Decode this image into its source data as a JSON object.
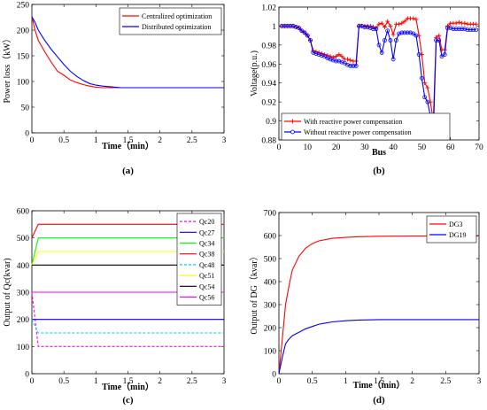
{
  "chart_data": [
    {
      "type": "line",
      "panel_label": "(a)",
      "xlabel": "Time（min）",
      "ylabel": "Power loss（kW）",
      "xlim": [
        0,
        3
      ],
      "ylim": [
        0,
        250
      ],
      "xticks": [
        "0",
        "0.5",
        "1",
        "1.5",
        "2",
        "2.5",
        "3"
      ],
      "yticks": [
        "0",
        "50",
        "100",
        "150",
        "200",
        "250"
      ],
      "legend_position": "top-right",
      "grid": false,
      "series": [
        {
          "name": "Centralized optimization",
          "color": "#ff0000",
          "x": [
            0,
            0.05,
            0.1,
            0.2,
            0.3,
            0.4,
            0.5,
            0.6,
            0.7,
            0.8,
            0.9,
            1.0,
            1.1,
            1.2,
            1.3,
            1.4,
            1.5,
            2.0,
            2.5,
            3.0
          ],
          "y": [
            226,
            200,
            180,
            158,
            138,
            120,
            112,
            103,
            98,
            94,
            91,
            89,
            88,
            88,
            88,
            88,
            88,
            88,
            88,
            88
          ]
        },
        {
          "name": "Distributed optimization",
          "color": "#0000ff",
          "x": [
            0,
            0.05,
            0.1,
            0.2,
            0.3,
            0.4,
            0.5,
            0.6,
            0.7,
            0.8,
            0.9,
            1.0,
            1.1,
            1.2,
            1.3,
            1.4,
            1.5,
            2.0,
            2.5,
            3.0
          ],
          "y": [
            226,
            215,
            200,
            180,
            163,
            148,
            133,
            120,
            110,
            102,
            96,
            93,
            91,
            90,
            89,
            88,
            88,
            88,
            88,
            88
          ]
        }
      ]
    },
    {
      "type": "line",
      "panel_label": "(b)",
      "xlabel": "Bus",
      "ylabel": "Voltage(p.u.)",
      "xlim": [
        0,
        70
      ],
      "ylim": [
        0.88,
        1.02
      ],
      "xticks": [
        "0",
        "10",
        "20",
        "30",
        "40",
        "50",
        "60",
        "70"
      ],
      "yticks": [
        "0.88",
        "0.9",
        "0.92",
        "0.94",
        "0.96",
        "0.98",
        "1",
        "1.02"
      ],
      "legend_position": "bottom-center",
      "grid": false,
      "series": [
        {
          "name": "With reactive power compensation",
          "color": "#ff0000",
          "marker": "plus",
          "x": [
            1,
            2,
            3,
            4,
            5,
            6,
            7,
            8,
            9,
            10,
            11,
            12,
            13,
            14,
            15,
            16,
            17,
            18,
            19,
            20,
            21,
            22,
            23,
            24,
            25,
            26,
            27,
            28,
            29,
            30,
            31,
            32,
            33,
            34,
            35,
            36,
            37,
            38,
            39,
            40,
            41,
            42,
            43,
            44,
            45,
            46,
            47,
            48,
            49,
            50,
            51,
            52,
            53,
            54,
            55,
            56,
            57,
            58,
            59,
            60,
            61,
            62,
            63,
            64,
            65,
            66,
            67,
            68,
            69
          ],
          "y": [
            1.0,
            1.0,
            1.0,
            1.0,
            1.0,
            0.999,
            0.998,
            0.995,
            0.993,
            0.99,
            0.985,
            0.974,
            0.973,
            0.972,
            0.971,
            0.97,
            0.969,
            0.968,
            0.967,
            0.968,
            0.97,
            0.968,
            0.965,
            0.965,
            0.964,
            0.963,
            0.963,
            1.0,
            1.0,
            1.0,
            1.0,
            1.0,
            0.999,
            0.998,
            1.002,
            1.003,
            0.999,
            1.005,
            1.0,
            0.991,
            1.002,
            1.002,
            1.003,
            1.005,
            1.008,
            1.008,
            1.008,
            1.007,
            0.99,
            0.97,
            0.94,
            0.935,
            0.92,
            0.9,
            0.988,
            0.99,
            0.975,
            0.975,
            1.0,
            1.003,
            1.003,
            1.003,
            1.004,
            1.003,
            1.003,
            1.002,
            1.002,
            1.002,
            1.002
          ]
        },
        {
          "name": "Without reactive power compensation",
          "color": "#0000ff",
          "marker": "circle",
          "x": [
            1,
            2,
            3,
            4,
            5,
            6,
            7,
            8,
            9,
            10,
            11,
            12,
            13,
            14,
            15,
            16,
            17,
            18,
            19,
            20,
            21,
            22,
            23,
            24,
            25,
            26,
            27,
            28,
            29,
            30,
            31,
            32,
            33,
            34,
            35,
            36,
            37,
            38,
            39,
            40,
            41,
            42,
            43,
            44,
            45,
            46,
            47,
            48,
            49,
            50,
            51,
            52,
            53,
            54,
            55,
            56,
            57,
            58,
            59,
            60,
            61,
            62,
            63,
            64,
            65,
            66,
            67,
            68,
            69
          ],
          "y": [
            1.0,
            1.0,
            1.0,
            1.0,
            1.0,
            0.999,
            0.998,
            0.995,
            0.993,
            0.99,
            0.985,
            0.972,
            0.971,
            0.97,
            0.969,
            0.968,
            0.966,
            0.965,
            0.964,
            0.963,
            0.963,
            0.962,
            0.961,
            0.959,
            0.958,
            0.958,
            0.958,
            1.0,
            1.0,
            0.999,
            0.999,
            0.998,
            0.997,
            0.997,
            0.98,
            0.972,
            0.985,
            0.995,
            0.985,
            0.965,
            0.985,
            0.992,
            0.993,
            0.993,
            0.993,
            0.993,
            0.992,
            0.99,
            0.97,
            0.945,
            0.925,
            0.92,
            0.905,
            0.884,
            0.985,
            0.985,
            0.968,
            0.97,
            0.998,
            0.998,
            0.997,
            0.997,
            0.997,
            0.997,
            0.997,
            0.996,
            0.996,
            0.996,
            0.996
          ]
        }
      ]
    },
    {
      "type": "line",
      "panel_label": "(c)",
      "xlabel": "Time（min）",
      "ylabel": "Output of Qc(kvar)",
      "xlim": [
        0,
        3
      ],
      "ylim": [
        0,
        600
      ],
      "xticks": [
        "0",
        "0.5",
        "1",
        "1.5",
        "2",
        "2.5",
        "3"
      ],
      "yticks": [
        "0",
        "100",
        "200",
        "300",
        "400",
        "500",
        "600"
      ],
      "legend_position": "right",
      "grid": false,
      "series": [
        {
          "name": "Qc20",
          "color": "#ff00ff",
          "dash": true,
          "x": [
            0,
            0.1,
            3
          ],
          "y": [
            300,
            100,
            100
          ]
        },
        {
          "name": "Qc27",
          "color": "#0000ff",
          "dash": false,
          "x": [
            0,
            0.05,
            3
          ],
          "y": [
            200,
            200,
            200
          ]
        },
        {
          "name": "Qc34",
          "color": "#00ff00",
          "dash": false,
          "x": [
            0,
            0.1,
            3
          ],
          "y": [
            400,
            500,
            500
          ]
        },
        {
          "name": "Qc38",
          "color": "#ff0000",
          "dash": false,
          "x": [
            0,
            0.1,
            3
          ],
          "y": [
            500,
            550,
            550
          ]
        },
        {
          "name": "Qc48",
          "color": "#00d0e8",
          "dash": true,
          "x": [
            0,
            0.1,
            3
          ],
          "y": [
            200,
            150,
            150
          ]
        },
        {
          "name": "Qc51",
          "color": "#ffff00",
          "dash": false,
          "x": [
            0,
            0.1,
            3
          ],
          "y": [
            400,
            450,
            450
          ]
        },
        {
          "name": "Qc54",
          "color": "#000000",
          "dash": false,
          "x": [
            0,
            0.05,
            3
          ],
          "y": [
            400,
            400,
            400
          ]
        },
        {
          "name": "Qc56",
          "color": "#ff00ff",
          "dash": false,
          "x": [
            0,
            0.05,
            3
          ],
          "y": [
            300,
            300,
            300
          ]
        }
      ]
    },
    {
      "type": "line",
      "panel_label": "(d)",
      "xlabel": "Time（min）",
      "ylabel": "Output of DG（kvar）",
      "xlim": [
        0,
        3
      ],
      "ylim": [
        0,
        700
      ],
      "xticks": [
        "0",
        "0.5",
        "1",
        "1.5",
        "2",
        "2.5",
        "3"
      ],
      "yticks": [
        "0",
        "100",
        "200",
        "300",
        "400",
        "500",
        "600",
        "700"
      ],
      "legend_position": "top-right",
      "grid": false,
      "series": [
        {
          "name": "DG3",
          "color": "#ff0000",
          "x": [
            0,
            0.05,
            0.1,
            0.15,
            0.2,
            0.3,
            0.4,
            0.5,
            0.6,
            0.8,
            1.0,
            1.2,
            1.5,
            2.0,
            2.5,
            3.0
          ],
          "y": [
            0,
            150,
            300,
            380,
            450,
            510,
            545,
            565,
            577,
            588,
            592,
            595,
            597,
            598,
            598,
            598
          ]
        },
        {
          "name": "DG19",
          "color": "#0000ff",
          "x": [
            0,
            0.05,
            0.1,
            0.15,
            0.2,
            0.3,
            0.4,
            0.5,
            0.6,
            0.7,
            0.8,
            1.0,
            1.2,
            1.5,
            2.0,
            2.5,
            3.0
          ],
          "y": [
            0,
            70,
            130,
            150,
            165,
            180,
            195,
            205,
            215,
            220,
            225,
            230,
            233,
            235,
            235,
            235,
            235
          ]
        }
      ]
    }
  ]
}
